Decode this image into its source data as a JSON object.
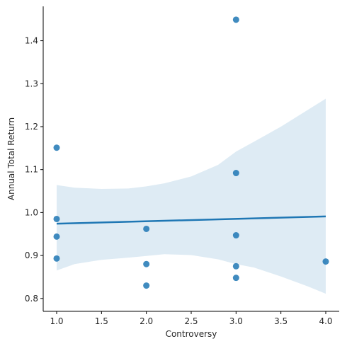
{
  "chart_data": {
    "type": "scatter",
    "xlabel": "Controversy",
    "ylabel": "Annual Total Return",
    "xlim": [
      0.85,
      4.15
    ],
    "ylim": [
      0.77,
      1.48
    ],
    "x_ticks": [
      1.0,
      1.5,
      2.0,
      2.5,
      3.0,
      3.5,
      4.0
    ],
    "x_tick_labels": [
      "1.0",
      "1.5",
      "2.0",
      "2.5",
      "3.0",
      "3.5",
      "4.0"
    ],
    "y_ticks": [
      0.8,
      0.9,
      1.0,
      1.1,
      1.2,
      1.3,
      1.4
    ],
    "y_tick_labels": [
      "0.8",
      "0.9",
      "1.0",
      "1.1",
      "1.2",
      "1.3",
      "1.4"
    ],
    "points": [
      {
        "x": 1.0,
        "y": 1.151
      },
      {
        "x": 1.0,
        "y": 0.985
      },
      {
        "x": 1.0,
        "y": 0.944
      },
      {
        "x": 1.0,
        "y": 0.893
      },
      {
        "x": 2.0,
        "y": 0.962
      },
      {
        "x": 2.0,
        "y": 0.88
      },
      {
        "x": 2.0,
        "y": 0.83
      },
      {
        "x": 3.0,
        "y": 1.449
      },
      {
        "x": 3.0,
        "y": 1.092
      },
      {
        "x": 3.0,
        "y": 0.947
      },
      {
        "x": 3.0,
        "y": 0.875
      },
      {
        "x": 3.0,
        "y": 0.848
      },
      {
        "x": 4.0,
        "y": 0.886
      }
    ],
    "regression": {
      "x": [
        1.0,
        4.0
      ],
      "y": [
        0.974,
        0.991
      ]
    },
    "ci_band": {
      "x": [
        1.0,
        1.2,
        1.5,
        1.8,
        2.0,
        2.2,
        2.5,
        2.8,
        3.0,
        3.2,
        3.5,
        3.8,
        4.0
      ],
      "upper": [
        1.064,
        1.058,
        1.055,
        1.056,
        1.061,
        1.068,
        1.084,
        1.111,
        1.142,
        1.165,
        1.2,
        1.239,
        1.265
      ],
      "lower": [
        0.865,
        0.88,
        0.89,
        0.895,
        0.899,
        0.903,
        0.901,
        0.891,
        0.88,
        0.872,
        0.851,
        0.828,
        0.811
      ]
    },
    "grid": false,
    "legend": "none",
    "colors": {
      "point": "#1f77b4",
      "line": "#1f77b4",
      "band": "#1f77b4"
    }
  }
}
